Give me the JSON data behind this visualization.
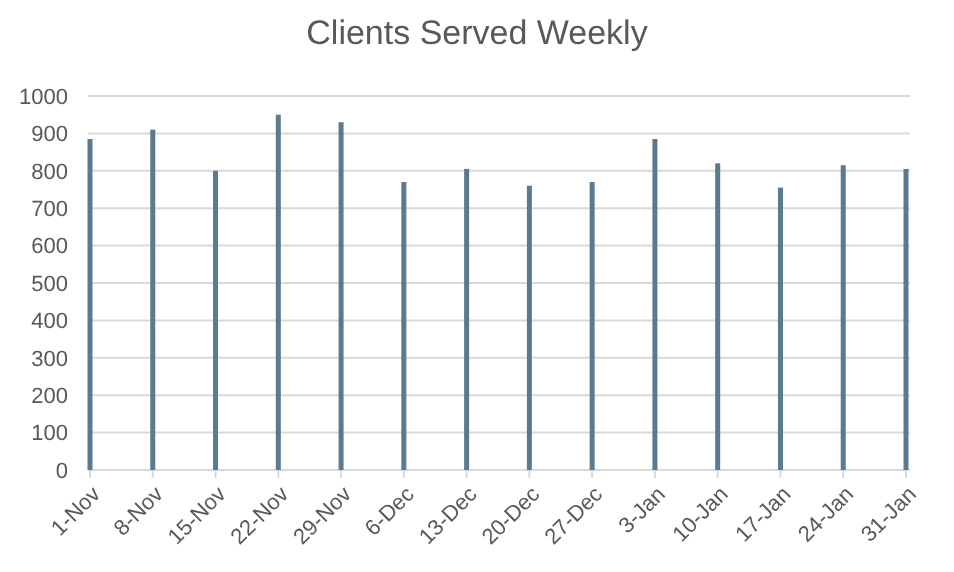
{
  "chart_data": {
    "type": "bar",
    "title": "Clients Served Weekly",
    "categories": [
      "1-Nov",
      "8-Nov",
      "15-Nov",
      "22-Nov",
      "29-Nov",
      "6-Dec",
      "13-Dec",
      "20-Dec",
      "27-Dec",
      "3-Jan",
      "10-Jan",
      "17-Jan",
      "24-Jan",
      "31-Jan"
    ],
    "values": [
      885,
      910,
      800,
      950,
      930,
      770,
      805,
      760,
      770,
      885,
      820,
      755,
      815,
      805
    ],
    "color": "#5b7a8e",
    "ylim": [
      0,
      1000
    ],
    "yticks": [
      0,
      100,
      200,
      300,
      400,
      500,
      600,
      700,
      800,
      900,
      1000
    ],
    "grid": "y"
  }
}
